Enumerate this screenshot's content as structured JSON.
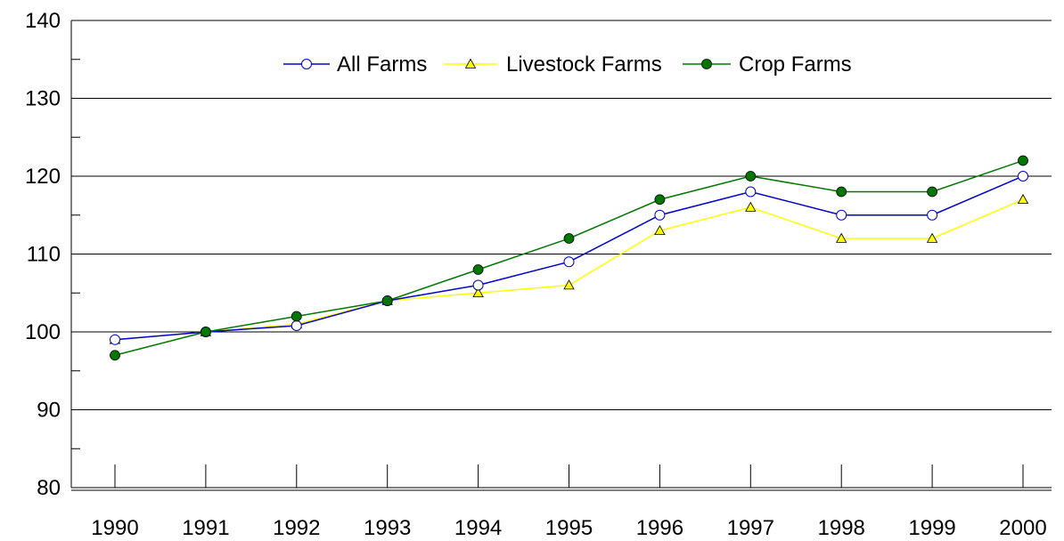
{
  "chart_data": {
    "type": "line",
    "title": "",
    "xlabel": "",
    "ylabel": "",
    "categories": [
      "1990",
      "1991",
      "1992",
      "1993",
      "1994",
      "1995",
      "1996",
      "1997",
      "1998",
      "1999",
      "2000"
    ],
    "ylim": [
      80,
      140
    ],
    "yticks": [
      80,
      90,
      100,
      110,
      120,
      130,
      140
    ],
    "grid": true,
    "legend_position": "top-center",
    "series": [
      {
        "name": "All Farms",
        "color": "#0000cc",
        "marker": "open-circle",
        "values": [
          99,
          100,
          100.8,
          104,
          106,
          109,
          115,
          118,
          115,
          115,
          120
        ]
      },
      {
        "name": "Livestock Farms",
        "color": "#ffff00",
        "marker": "triangle",
        "values": [
          99,
          100,
          101,
          104,
          105,
          106,
          113,
          116,
          112,
          112,
          117
        ]
      },
      {
        "name": "Crop Farms",
        "color": "#007700",
        "marker": "filled-circle",
        "values": [
          97,
          100,
          102,
          104,
          108,
          112,
          117,
          120,
          118,
          118,
          122
        ]
      }
    ]
  }
}
